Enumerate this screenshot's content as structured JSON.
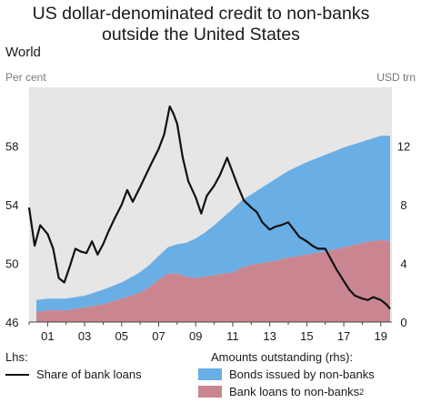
{
  "title": "US dollar-denominated credit to non-banks outside the United States",
  "subtitle": "World",
  "unit_left": "Per cent",
  "unit_right": "USD trn",
  "colors": {
    "background": "#e6e6e6",
    "bonds": "#6aaee6",
    "loans": "#c98690",
    "line": "#111111"
  },
  "legend": {
    "lhs_head": "Lhs:",
    "lhs_item": "Share of bank loans",
    "rhs_head": "Amounts outstanding (rhs):",
    "rhs_item1": "Bonds issued by non-banks",
    "rhs_item2": "Bank loans to non-banks",
    "rhs_item2_sup": "2"
  },
  "chart_data": {
    "type": "area",
    "x_range": [
      2000,
      2019.6
    ],
    "x_ticks": [
      "01",
      "03",
      "05",
      "07",
      "09",
      "11",
      "13",
      "15",
      "17",
      "19"
    ],
    "y_left": {
      "range": [
        46,
        62
      ],
      "ticks": [
        46,
        50,
        54,
        58
      ]
    },
    "y_right": {
      "range": [
        0,
        16
      ],
      "ticks": [
        0,
        4,
        8,
        12
      ]
    },
    "x": [
      2000.0,
      2001.0,
      2002.0,
      2003.0,
      2004.0,
      2005.0,
      2006.0,
      2006.5,
      2007.0,
      2007.5,
      2008.0,
      2008.5,
      2009.0,
      2009.5,
      2010.0,
      2011.0,
      2011.5,
      2012.0,
      2013.0,
      2014.0,
      2015.0,
      2016.0,
      2017.0,
      2018.0,
      2019.0,
      2019.5
    ],
    "series": [
      {
        "name": "Bank loans to non-banks",
        "axis": "right",
        "values": [
          0.7,
          0.8,
          0.8,
          1.0,
          1.2,
          1.6,
          2.0,
          2.4,
          2.9,
          3.3,
          3.3,
          3.1,
          3.0,
          3.1,
          3.2,
          3.4,
          3.7,
          3.9,
          4.1,
          4.4,
          4.6,
          4.8,
          5.1,
          5.4,
          5.6,
          5.5
        ]
      },
      {
        "name": "Bonds issued by non-banks",
        "axis": "right",
        "values": [
          0.8,
          0.8,
          0.8,
          0.8,
          1.0,
          1.1,
          1.4,
          1.5,
          1.6,
          1.8,
          2.0,
          2.3,
          2.7,
          3.0,
          3.4,
          4.3,
          4.6,
          4.8,
          5.4,
          5.9,
          6.3,
          6.6,
          6.8,
          6.9,
          7.1,
          7.2
        ]
      }
    ],
    "line_series": {
      "name": "Share of bank loans",
      "axis": "left",
      "x": [
        2000.0,
        2000.3,
        2000.6,
        2001.0,
        2001.3,
        2001.6,
        2001.9,
        2002.2,
        2002.5,
        2002.8,
        2003.1,
        2003.4,
        2003.7,
        2004.0,
        2004.3,
        2004.6,
        2005.0,
        2005.3,
        2005.6,
        2006.0,
        2006.3,
        2006.6,
        2007.0,
        2007.3,
        2007.6,
        2007.8,
        2008.0,
        2008.3,
        2008.6,
        2009.0,
        2009.3,
        2009.6,
        2010.0,
        2010.3,
        2010.7,
        2011.0,
        2011.3,
        2011.6,
        2012.0,
        2012.3,
        2012.6,
        2013.0,
        2013.3,
        2013.6,
        2014.0,
        2014.3,
        2014.6,
        2015.0,
        2015.3,
        2015.6,
        2016.0,
        2016.3,
        2016.6,
        2017.0,
        2017.3,
        2017.6,
        2018.0,
        2018.3,
        2018.6,
        2019.0,
        2019.3,
        2019.5
      ],
      "values": [
        53.8,
        51.2,
        52.6,
        52.0,
        51.0,
        49.0,
        48.7,
        49.8,
        51.0,
        50.8,
        50.7,
        51.5,
        50.6,
        51.3,
        52.2,
        53.0,
        54.0,
        55.0,
        54.2,
        55.2,
        56.0,
        56.8,
        57.8,
        58.8,
        60.7,
        60.2,
        59.5,
        57.2,
        55.6,
        54.5,
        53.4,
        54.6,
        55.3,
        56.0,
        57.2,
        56.2,
        55.2,
        54.3,
        53.8,
        53.5,
        52.8,
        52.3,
        52.5,
        52.6,
        52.8,
        52.3,
        51.8,
        51.5,
        51.2,
        51.0,
        51.0,
        50.3,
        49.6,
        48.8,
        48.2,
        47.8,
        47.6,
        47.5,
        47.7,
        47.5,
        47.2,
        46.9
      ]
    }
  }
}
